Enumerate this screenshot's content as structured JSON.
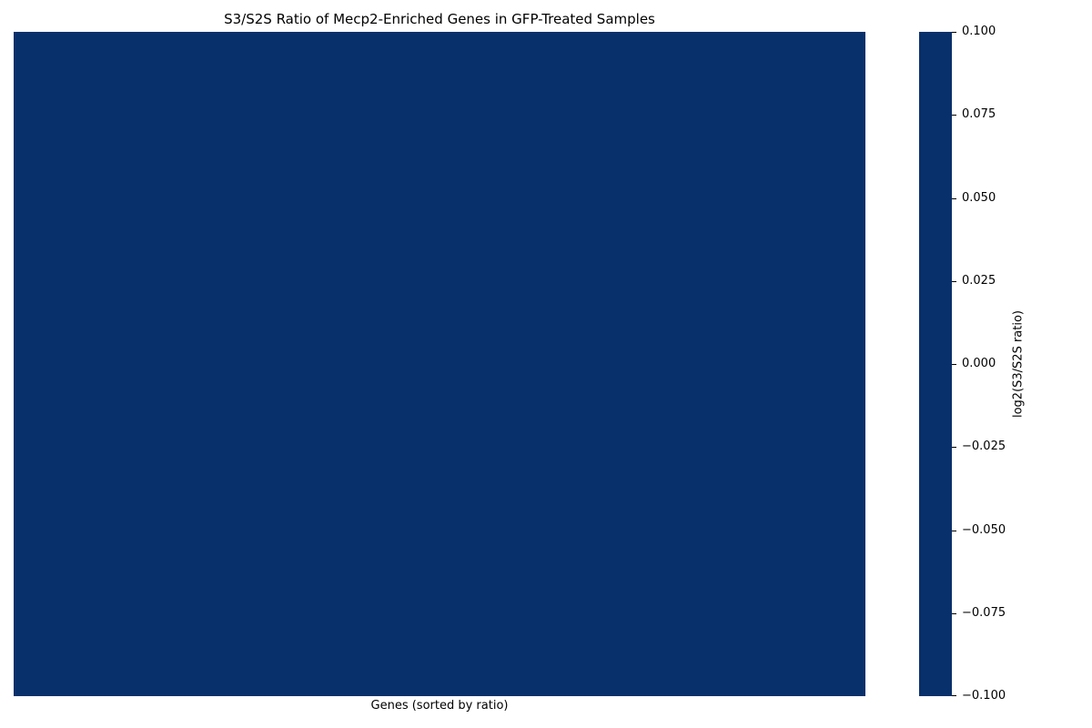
{
  "chart_data": {
    "type": "heatmap",
    "title": "S3/S2S Ratio of Mecp2-Enriched Genes in GFP-Treated Samples",
    "xlabel": "Genes (sorted by ratio)",
    "ylabel": "",
    "values": [
      [
        0
      ]
    ],
    "cell_color": "#08306b",
    "colorbar": {
      "label": "log2(S3/S2S ratio)",
      "range": [
        -0.1,
        0.1
      ],
      "ticks": [
        0.1,
        0.075,
        0.05,
        0.025,
        0.0,
        -0.025,
        -0.05,
        -0.075,
        -0.1
      ],
      "tick_labels": [
        "0.100",
        "0.075",
        "0.050",
        "0.025",
        "0.000",
        "−0.025",
        "−0.050",
        "−0.075",
        "−0.100"
      ],
      "color": "#08306b"
    }
  }
}
